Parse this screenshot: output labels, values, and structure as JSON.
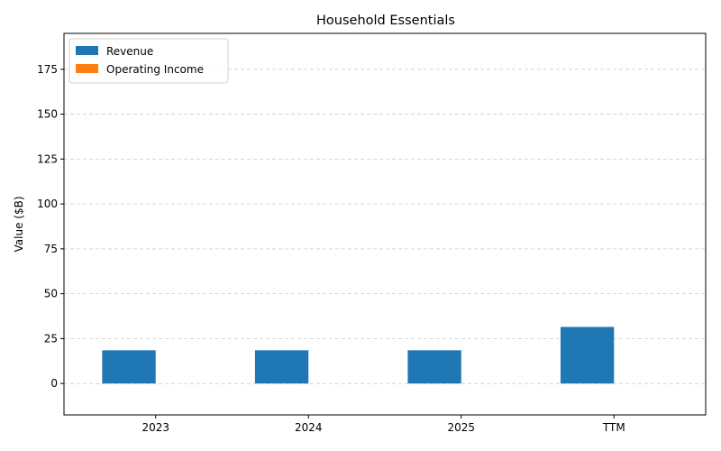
{
  "chart_data": {
    "type": "bar",
    "title": "Household Essentials",
    "xlabel": "",
    "ylabel": "Value ($B)",
    "categories": [
      "2023",
      "2024",
      "2025",
      "TTM"
    ],
    "series": [
      {
        "name": "Revenue",
        "values": [
          18.5,
          18.5,
          18.5,
          31.5
        ],
        "color": "#1f77b4"
      },
      {
        "name": "Operating Income",
        "values": [
          0,
          0,
          0,
          0
        ],
        "color": "#ff7f0e"
      }
    ],
    "ylim": [
      -17.5,
      195
    ],
    "yticks": [
      0,
      25,
      50,
      75,
      100,
      125,
      150,
      175
    ],
    "grid": true,
    "legend_position": "top-left"
  }
}
